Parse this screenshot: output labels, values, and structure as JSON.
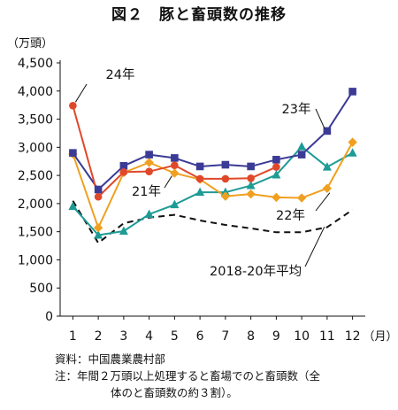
{
  "figure": {
    "title": "図２　豚と畜頭数の推移",
    "unit_label": "（万頭）",
    "source": "資料：中国農業農村部",
    "note_line1": "注：年間２万頭以上処理すると畜場でのと畜頭数（全",
    "note_line2": "体のと畜頭数の約３割）。"
  },
  "chart_data": {
    "type": "line",
    "title": "図２　豚と畜頭数の推移",
    "ylabel": "（万頭）",
    "xlabel": "（月）",
    "x": [
      1,
      2,
      3,
      4,
      5,
      6,
      7,
      8,
      9,
      10,
      11,
      12
    ],
    "ylim": [
      0,
      4500
    ],
    "yticks": [
      0,
      500,
      1000,
      1500,
      2000,
      2500,
      3000,
      3500,
      4000,
      4500
    ],
    "ytick_labels": [
      "0",
      "500",
      "1,000",
      "1,500",
      "2,000",
      "2,500",
      "3,000",
      "3,500",
      "4,000",
      "4,500"
    ],
    "grid": false,
    "series": [
      {
        "name": "24年",
        "color": "#e0482a",
        "marker": "circle",
        "values": [
          3740,
          2120,
          2560,
          2570,
          2680,
          2440,
          2440,
          2450,
          2650,
          null,
          null,
          null
        ]
      },
      {
        "name": "23年",
        "color": "#3b3b96",
        "marker": "square",
        "values": [
          2900,
          2250,
          2670,
          2870,
          2810,
          2660,
          2690,
          2660,
          2780,
          2870,
          3290,
          3990
        ]
      },
      {
        "name": "22年",
        "color": "#f0a020",
        "marker": "diamond",
        "values": [
          2880,
          1570,
          2550,
          2730,
          2540,
          2430,
          2130,
          2170,
          2110,
          2100,
          2270,
          3090
        ]
      },
      {
        "name": "21年",
        "color": "#1e9b95",
        "marker": "triangle",
        "values": [
          1950,
          1440,
          1510,
          1810,
          1980,
          2200,
          2200,
          2320,
          2510,
          3010,
          2650,
          2900
        ]
      },
      {
        "name": "2018-20年平均",
        "color": "#111111",
        "marker": "none",
        "dashed": true,
        "values": [
          2050,
          1300,
          1650,
          1750,
          1800,
          1700,
          1620,
          1560,
          1490,
          1490,
          1580,
          1890
        ]
      }
    ]
  }
}
